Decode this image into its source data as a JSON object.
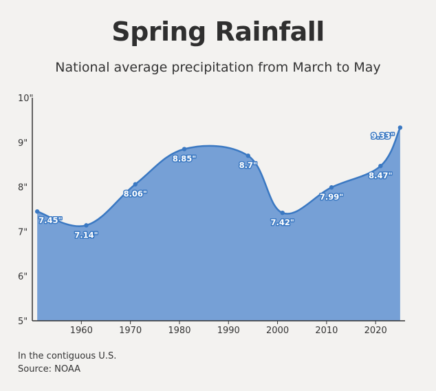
{
  "chart_data": {
    "type": "area",
    "title": "Spring Rainfall",
    "subtitle": "National average precipitation from March to May",
    "xlabel": "",
    "ylabel": "",
    "x": [
      1951,
      1961,
      1971,
      1981,
      1994,
      2001,
      2011,
      2021,
      2025
    ],
    "values": [
      7.45,
      7.14,
      8.06,
      8.85,
      8.7,
      7.42,
      7.99,
      8.47,
      9.33
    ],
    "data_labels": [
      "7.45\"",
      "7.14\"",
      "8.06\"",
      "8.85\"",
      "8.7\"",
      "7.42\"",
      "7.99\"",
      "8.47\"",
      "9.33\""
    ],
    "xlim": [
      1950,
      2026
    ],
    "ylim": [
      5,
      10
    ],
    "x_ticks": [
      1960,
      1970,
      1980,
      1990,
      2000,
      2010,
      2020
    ],
    "x_tick_labels": [
      "1960",
      "1970",
      "1980",
      "1990",
      "2000",
      "2010",
      "2020"
    ],
    "y_ticks": [
      5,
      6,
      7,
      8,
      9,
      10
    ],
    "y_tick_labels": [
      "5\"",
      "6\"",
      "7\"",
      "8\"",
      "9\"",
      "10\""
    ],
    "grid": false,
    "colors": {
      "fill": "#76a0d6",
      "line": "#3a78c2",
      "axis": "#333333"
    }
  },
  "footnotes": {
    "scope": "In the contiguous U.S.",
    "source": "Source: NOAA"
  }
}
